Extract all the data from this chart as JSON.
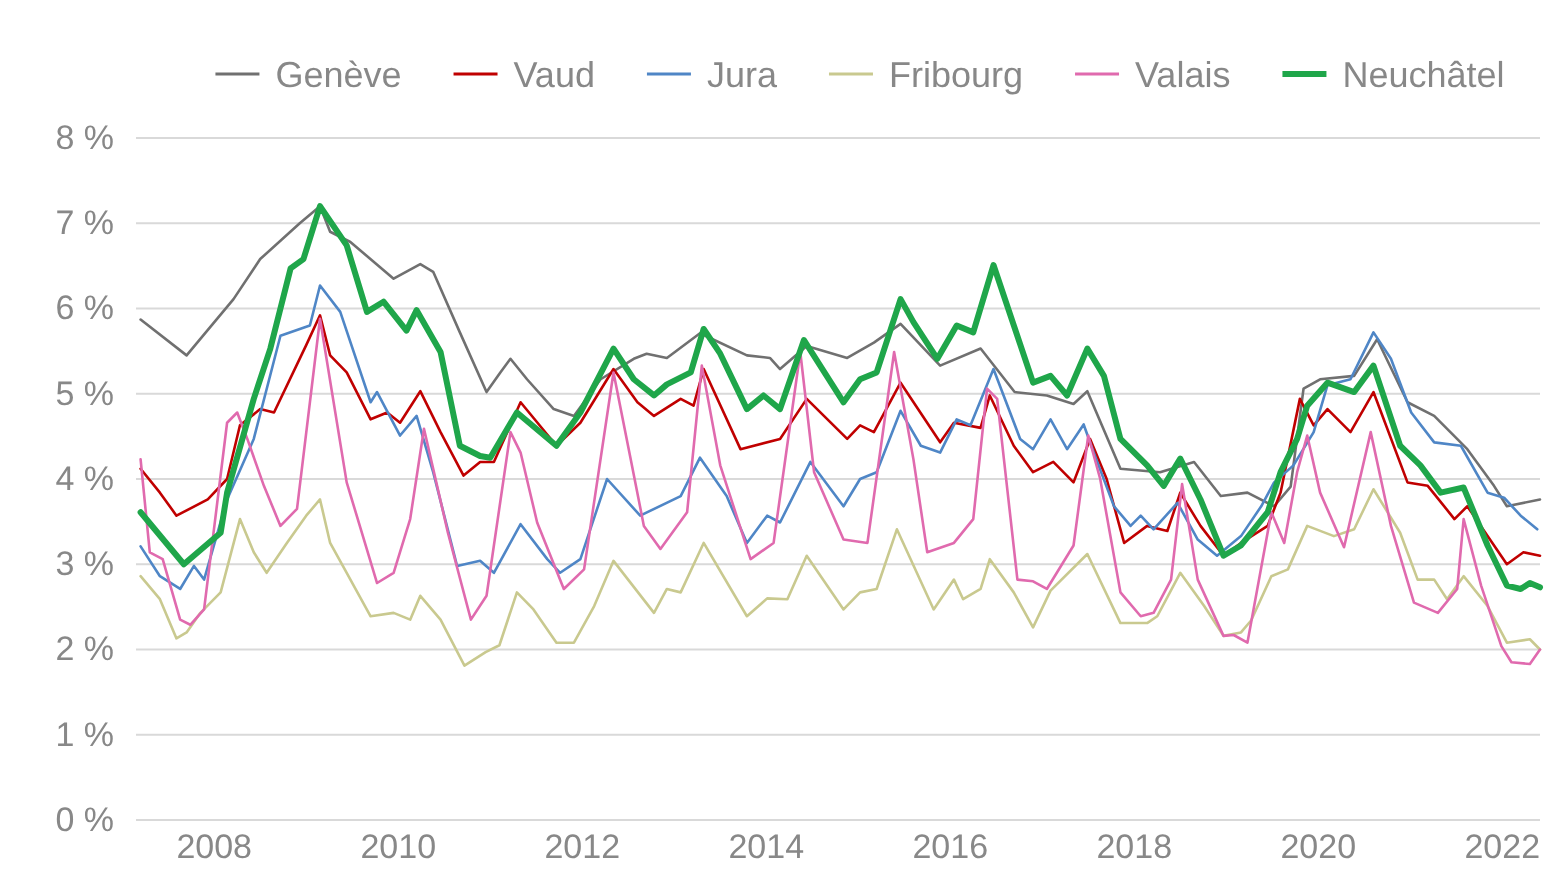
{
  "chart_data": {
    "type": "line",
    "xlim": [
      2007.15,
      2022.41
    ],
    "xticks": [
      2008,
      2010,
      2012,
      2014,
      2016,
      2018,
      2020,
      2022
    ],
    "ylim": [
      0,
      8
    ],
    "yticks": [
      {
        "value": 0,
        "label": "0 %"
      },
      {
        "value": 1,
        "label": "1 %"
      },
      {
        "value": 2,
        "label": "2 %"
      },
      {
        "value": 3,
        "label": "3 %"
      },
      {
        "value": 4,
        "label": "4 %"
      },
      {
        "value": 5,
        "label": "5 %"
      },
      {
        "value": 6,
        "label": "6 %"
      },
      {
        "value": 7,
        "label": "7 %"
      },
      {
        "value": 8,
        "label": "8 %"
      }
    ],
    "grid": "y",
    "legend": "top",
    "marker": "none",
    "line_style": "solid",
    "series": [
      {
        "name": "Genève",
        "color": "#707070",
        "x": [
          2007.2,
          2007.7,
          2008.21,
          2008.5,
          2008.93,
          2009.15,
          2009.26,
          2009.48,
          2009.95,
          2010.24,
          2010.38,
          2010.67,
          2010.96,
          2011.11,
          2011.22,
          2011.4,
          2011.69,
          2011.91,
          2012.2,
          2012.56,
          2012.7,
          2012.92,
          2013.28,
          2013.79,
          2014.04,
          2014.15,
          2014.44,
          2014.88,
          2015.17,
          2015.46,
          2015.89,
          2016.33,
          2016.7,
          2017.05,
          2017.34,
          2017.49,
          2017.85,
          2018.28,
          2018.65,
          2018.94,
          2019.23,
          2019.52,
          2019.7,
          2019.84,
          2020.02,
          2020.39,
          2020.64,
          2020.97,
          2021.26,
          2021.62,
          2021.91,
          2022.05,
          2022.41
        ],
        "values": [
          5.87,
          5.45,
          6.11,
          6.58,
          7.0,
          7.2,
          6.9,
          6.78,
          6.35,
          6.52,
          6.43,
          5.72,
          5.02,
          5.25,
          5.41,
          5.17,
          4.82,
          4.74,
          5.17,
          5.41,
          5.47,
          5.42,
          5.71,
          5.45,
          5.42,
          5.29,
          5.56,
          5.42,
          5.6,
          5.82,
          5.33,
          5.53,
          5.02,
          4.98,
          4.88,
          5.03,
          4.12,
          4.08,
          4.2,
          3.8,
          3.84,
          3.68,
          3.91,
          5.06,
          5.17,
          5.21,
          5.64,
          4.9,
          4.74,
          4.35,
          3.92,
          3.68,
          3.76
        ]
      },
      {
        "name": "Vaud",
        "color": "#c00000",
        "x": [
          2007.2,
          2007.41,
          2007.59,
          2007.93,
          2008.14,
          2008.28,
          2008.5,
          2008.65,
          2009.0,
          2009.15,
          2009.26,
          2009.44,
          2009.7,
          2009.88,
          2010.02,
          2010.24,
          2010.46,
          2010.71,
          2010.89,
          2011.04,
          2011.33,
          2011.72,
          2011.98,
          2012.34,
          2012.6,
          2012.78,
          2013.07,
          2013.21,
          2013.32,
          2013.72,
          2014.15,
          2014.44,
          2014.88,
          2015.02,
          2015.17,
          2015.46,
          2015.89,
          2016.04,
          2016.33,
          2016.43,
          2016.69,
          2016.9,
          2017.12,
          2017.34,
          2017.52,
          2017.7,
          2017.89,
          2018.14,
          2018.36,
          2018.5,
          2018.72,
          2018.97,
          2019.16,
          2019.45,
          2019.59,
          2019.8,
          2019.95,
          2020.1,
          2020.35,
          2020.6,
          2020.97,
          2021.19,
          2021.48,
          2021.62,
          2022.05,
          2022.23,
          2022.41
        ],
        "values": [
          4.12,
          3.84,
          3.57,
          3.76,
          4.0,
          4.63,
          4.82,
          4.78,
          5.57,
          5.92,
          5.45,
          5.25,
          4.7,
          4.78,
          4.66,
          5.03,
          4.55,
          4.04,
          4.2,
          4.2,
          4.9,
          4.39,
          4.66,
          5.29,
          4.9,
          4.74,
          4.94,
          4.86,
          5.29,
          4.35,
          4.47,
          4.94,
          4.47,
          4.63,
          4.55,
          5.13,
          4.43,
          4.66,
          4.6,
          4.98,
          4.39,
          4.08,
          4.2,
          3.96,
          4.47,
          4.0,
          3.25,
          3.45,
          3.39,
          3.84,
          3.45,
          3.1,
          3.25,
          3.45,
          3.84,
          4.94,
          4.63,
          4.82,
          4.55,
          5.02,
          3.96,
          3.92,
          3.53,
          3.68,
          3.0,
          3.14,
          3.1
        ]
      },
      {
        "name": "Jura",
        "color": "#4f86c6",
        "x": [
          2007.2,
          2007.41,
          2007.63,
          2007.78,
          2007.89,
          2008.14,
          2008.43,
          2008.72,
          2009.04,
          2009.15,
          2009.37,
          2009.7,
          2009.77,
          2010.02,
          2010.2,
          2010.38,
          2010.64,
          2010.89,
          2011.04,
          2011.33,
          2011.62,
          2011.76,
          2011.98,
          2012.27,
          2012.63,
          2013.07,
          2013.28,
          2013.57,
          2013.79,
          2014.01,
          2014.15,
          2014.48,
          2014.84,
          2015.02,
          2015.2,
          2015.46,
          2015.68,
          2015.89,
          2016.07,
          2016.22,
          2016.47,
          2016.76,
          2016.9,
          2017.09,
          2017.27,
          2017.45,
          2017.56,
          2017.78,
          2017.96,
          2018.07,
          2018.21,
          2018.47,
          2018.69,
          2018.9,
          2019.16,
          2019.38,
          2019.52,
          2019.73,
          2019.95,
          2020.1,
          2020.35,
          2020.6,
          2020.79,
          2021.01,
          2021.26,
          2021.55,
          2021.84,
          2022.02,
          2022.2,
          2022.38
        ],
        "values": [
          3.21,
          2.86,
          2.71,
          2.98,
          2.82,
          3.76,
          4.47,
          5.68,
          5.8,
          6.27,
          5.96,
          4.9,
          5.02,
          4.51,
          4.74,
          4.08,
          2.98,
          3.04,
          2.9,
          3.47,
          3.06,
          2.9,
          3.06,
          4.0,
          3.57,
          3.8,
          4.25,
          3.8,
          3.25,
          3.57,
          3.49,
          4.2,
          3.68,
          4.0,
          4.08,
          4.8,
          4.39,
          4.31,
          4.7,
          4.63,
          5.29,
          4.47,
          4.35,
          4.7,
          4.35,
          4.64,
          4.31,
          3.68,
          3.45,
          3.57,
          3.41,
          3.72,
          3.29,
          3.1,
          3.33,
          3.68,
          3.96,
          4.16,
          4.55,
          5.1,
          5.17,
          5.72,
          5.41,
          4.78,
          4.43,
          4.39,
          3.84,
          3.78,
          3.57,
          3.41
        ]
      },
      {
        "name": "Fribourg",
        "color": "#c9c98f",
        "x": [
          2007.2,
          2007.41,
          2007.59,
          2007.7,
          2007.85,
          2008.07,
          2008.28,
          2008.43,
          2008.57,
          2008.79,
          2009.0,
          2009.15,
          2009.26,
          2009.44,
          2009.7,
          2009.95,
          2010.13,
          2010.24,
          2010.46,
          2010.72,
          2010.95,
          2011.1,
          2011.29,
          2011.47,
          2011.72,
          2011.91,
          2012.13,
          2012.34,
          2012.78,
          2012.92,
          2013.07,
          2013.32,
          2013.79,
          2014.01,
          2014.23,
          2014.44,
          2014.84,
          2015.02,
          2015.2,
          2015.42,
          2015.82,
          2016.04,
          2016.14,
          2016.33,
          2016.43,
          2016.69,
          2016.9,
          2017.09,
          2017.49,
          2017.85,
          2018.14,
          2018.25,
          2018.5,
          2018.76,
          2018.97,
          2019.16,
          2019.27,
          2019.49,
          2019.67,
          2019.88,
          2020.17,
          2020.39,
          2020.6,
          2020.89,
          2021.08,
          2021.26,
          2021.4,
          2021.58,
          2021.84,
          2022.05,
          2022.3,
          2022.41
        ],
        "values": [
          2.86,
          2.59,
          2.13,
          2.2,
          2.43,
          2.67,
          3.53,
          3.14,
          2.9,
          3.25,
          3.57,
          3.76,
          3.25,
          2.9,
          2.39,
          2.43,
          2.35,
          2.63,
          2.35,
          1.81,
          1.97,
          2.05,
          2.67,
          2.47,
          2.08,
          2.08,
          2.51,
          3.04,
          2.43,
          2.71,
          2.67,
          3.25,
          2.39,
          2.6,
          2.59,
          3.1,
          2.47,
          2.67,
          2.71,
          3.41,
          2.47,
          2.82,
          2.59,
          2.71,
          3.06,
          2.67,
          2.26,
          2.69,
          3.12,
          2.31,
          2.31,
          2.39,
          2.9,
          2.51,
          2.16,
          2.2,
          2.34,
          2.86,
          2.94,
          3.45,
          3.33,
          3.41,
          3.88,
          3.37,
          2.82,
          2.82,
          2.59,
          2.86,
          2.51,
          2.08,
          2.12,
          2.0
        ]
      },
      {
        "name": "Valais",
        "color": "#e06aae",
        "x": [
          2007.2,
          2007.3,
          2007.44,
          2007.63,
          2007.74,
          2007.89,
          2008.14,
          2008.25,
          2008.36,
          2008.54,
          2008.72,
          2008.9,
          2009.15,
          2009.44,
          2009.77,
          2009.95,
          2010.13,
          2010.28,
          2010.54,
          2010.79,
          2010.96,
          2011.22,
          2011.33,
          2011.51,
          2011.8,
          2012.02,
          2012.34,
          2012.52,
          2012.67,
          2012.85,
          2013.14,
          2013.3,
          2013.5,
          2013.83,
          2014.08,
          2014.37,
          2014.52,
          2014.84,
          2015.1,
          2015.39,
          2015.6,
          2015.75,
          2016.04,
          2016.25,
          2016.4,
          2016.51,
          2016.73,
          2016.9,
          2017.05,
          2017.34,
          2017.5,
          2017.63,
          2017.85,
          2018.07,
          2018.21,
          2018.4,
          2018.52,
          2018.69,
          2018.97,
          2019.08,
          2019.23,
          2019.49,
          2019.63,
          2019.77,
          2019.88,
          2020.02,
          2020.28,
          2020.57,
          2020.79,
          2021.04,
          2021.3,
          2021.51,
          2021.58,
          2021.77,
          2021.99,
          2022.1,
          2022.3,
          2022.41
        ],
        "values": [
          4.23,
          3.14,
          3.06,
          2.35,
          2.29,
          2.47,
          4.66,
          4.78,
          4.47,
          3.92,
          3.45,
          3.65,
          5.88,
          3.96,
          2.78,
          2.9,
          3.53,
          4.59,
          3.37,
          2.35,
          2.63,
          4.55,
          4.31,
          3.49,
          2.71,
          2.94,
          5.25,
          4.27,
          3.45,
          3.18,
          3.61,
          5.33,
          4.16,
          3.06,
          3.25,
          5.49,
          4.08,
          3.29,
          3.25,
          5.49,
          4.23,
          3.14,
          3.25,
          3.53,
          5.06,
          4.94,
          2.82,
          2.8,
          2.71,
          3.22,
          4.51,
          4.0,
          2.67,
          2.39,
          2.43,
          2.82,
          3.94,
          2.82,
          2.16,
          2.17,
          2.08,
          3.61,
          3.25,
          4.08,
          4.51,
          3.84,
          3.2,
          4.55,
          3.45,
          2.55,
          2.43,
          2.71,
          3.53,
          2.75,
          2.04,
          1.85,
          1.83,
          2.0
        ]
      },
      {
        "name": "Neuchâtel",
        "color": "#1fa64a",
        "x": [
          2007.2,
          2007.67,
          2008.07,
          2008.14,
          2008.43,
          2008.61,
          2008.83,
          2008.97,
          2009.15,
          2009.44,
          2009.66,
          2009.84,
          2010.09,
          2010.2,
          2010.46,
          2010.67,
          2010.89,
          2011.0,
          2011.29,
          2011.72,
          2011.98,
          2012.34,
          2012.56,
          2012.78,
          2012.92,
          2013.18,
          2013.32,
          2013.5,
          2013.79,
          2013.97,
          2014.15,
          2014.41,
          2014.84,
          2015.02,
          2015.2,
          2015.46,
          2015.6,
          2015.86,
          2016.07,
          2016.25,
          2016.47,
          2016.9,
          2017.09,
          2017.27,
          2017.49,
          2017.67,
          2017.85,
          2018.14,
          2018.32,
          2018.5,
          2018.72,
          2018.97,
          2019.16,
          2019.45,
          2019.59,
          2019.77,
          2019.88,
          2020.1,
          2020.39,
          2020.6,
          2020.89,
          2021.11,
          2021.33,
          2021.58,
          2021.84,
          2022.05,
          2022.2,
          2022.3,
          2022.41
        ],
        "values": [
          3.61,
          3.0,
          3.37,
          3.84,
          4.94,
          5.53,
          6.47,
          6.58,
          7.2,
          6.74,
          5.96,
          6.08,
          5.74,
          5.98,
          5.49,
          4.39,
          4.27,
          4.25,
          4.78,
          4.39,
          4.78,
          5.53,
          5.17,
          4.98,
          5.11,
          5.25,
          5.76,
          5.47,
          4.82,
          4.98,
          4.82,
          5.63,
          4.9,
          5.17,
          5.25,
          6.11,
          5.84,
          5.41,
          5.8,
          5.72,
          6.51,
          5.13,
          5.21,
          4.98,
          5.53,
          5.21,
          4.47,
          4.16,
          3.92,
          4.24,
          3.76,
          3.1,
          3.22,
          3.61,
          4.08,
          4.47,
          4.86,
          5.13,
          5.02,
          5.33,
          4.39,
          4.16,
          3.84,
          3.9,
          3.22,
          2.75,
          2.71,
          2.78,
          2.73
        ]
      }
    ]
  }
}
